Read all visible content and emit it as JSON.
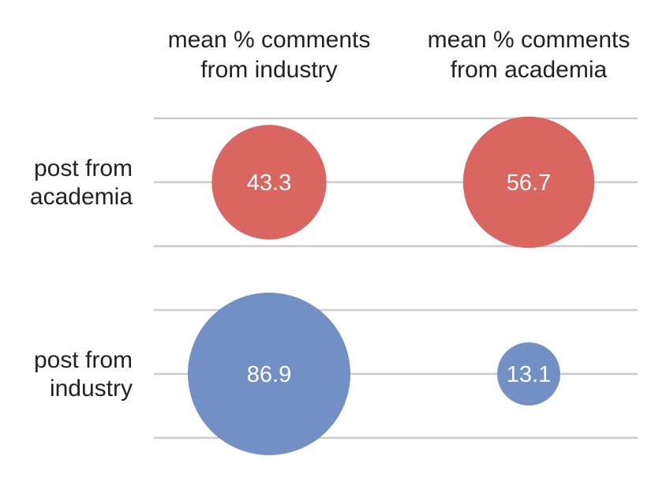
{
  "chart_data": {
    "type": "bubble-matrix",
    "columns": [
      "mean % comments from industry",
      "mean % comments from academia"
    ],
    "columns_lines": [
      [
        "mean % comments",
        "from industry"
      ],
      [
        "mean % comments",
        "from academia"
      ]
    ],
    "rows": [
      "post from academia",
      "post from industry"
    ],
    "rows_lines": [
      [
        "post from",
        "academia"
      ],
      [
        "post from",
        "industry"
      ]
    ],
    "values": [
      [
        43.3,
        56.7
      ],
      [
        86.9,
        13.1
      ]
    ],
    "value_labels": [
      [
        "43.3",
        "56.7"
      ],
      [
        "86.9",
        "13.1"
      ]
    ],
    "row_colors": [
      "#d96661",
      "#7390c5"
    ],
    "grid": true,
    "size_encoding": "bubble area proportional to value"
  }
}
